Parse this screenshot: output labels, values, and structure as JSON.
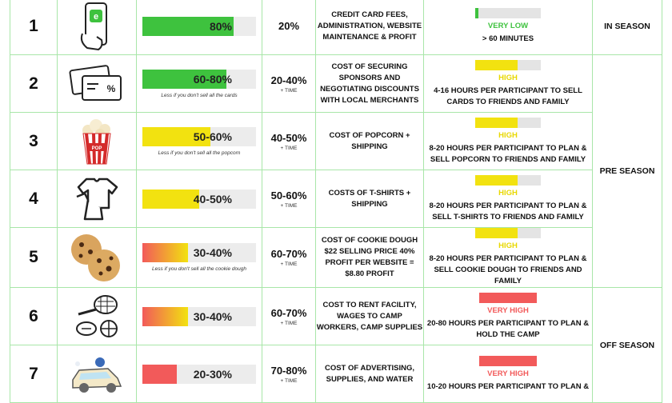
{
  "colors": {
    "border": "#a8e6a8",
    "green": "#3ec23e",
    "yellow": "#f2e210",
    "red": "#f25a5a",
    "very_low_text": "#3ec23e",
    "high_text": "#e8d800",
    "very_high_text": "#f25a5a"
  },
  "rows": [
    {
      "number": "1",
      "icon": "smartphone-icon",
      "percent_label": "80%",
      "bar_fraction": 0.8,
      "bar_color": "green",
      "note": "",
      "profit": "20%",
      "profit_sub": "",
      "cost": "CREDIT CARD FEES, ADMINISTRATION, WEBSITE MAINTENANCE & PROFIT",
      "effort_level": "VERY LOW",
      "effort_fraction": 0.04,
      "effort_color": "green",
      "effort_width": "short",
      "time_desc": "> 60 MINUTES",
      "season": "IN SEASON"
    },
    {
      "number": "2",
      "icon": "discount-cards-icon",
      "percent_label": "60-80%",
      "bar_fraction": 0.74,
      "bar_color": "green",
      "note": "Less if you don't sell all the cards",
      "profit": "20-40%",
      "profit_sub": "+ TIME",
      "cost": "COST OF SECURING SPONSORS AND NEGOTIATING DISCOUNTS WITH LOCAL MERCHANTS",
      "effort_level": "HIGH",
      "effort_fraction": 0.65,
      "effort_color": "yellow",
      "effort_width": "short",
      "time_desc": "4-16 HOURS PER PARTICIPANT TO SELL CARDS TO FRIENDS AND FAMILY",
      "season": ""
    },
    {
      "number": "3",
      "icon": "popcorn-icon",
      "percent_label": "50-60%",
      "bar_fraction": 0.6,
      "bar_color": "yellow",
      "note": "Less if you don't sell all the popcorn",
      "profit": "40-50%",
      "profit_sub": "+ TIME",
      "cost": "COST OF POPCORN + SHIPPING",
      "effort_level": "HIGH",
      "effort_fraction": 0.65,
      "effort_color": "yellow",
      "effort_width": "short",
      "time_desc": "8-20 HOURS PER PARTICIPANT TO PLAN & SELL POPCORN TO FRIENDS AND FAMILY",
      "season": "PRE SEASON"
    },
    {
      "number": "4",
      "icon": "t-shirts-icon",
      "percent_label": "40-50%",
      "bar_fraction": 0.5,
      "bar_color": "yellow",
      "note": "",
      "profit": "50-60%",
      "profit_sub": "+ TIME",
      "cost": "COSTS OF T-SHIRTS + SHIPPING",
      "effort_level": "HIGH",
      "effort_fraction": 0.65,
      "effort_color": "yellow",
      "effort_width": "short",
      "time_desc": "8-20 HOURS PER PARTICIPANT TO PLAN & SELL T-SHIRTS TO FRIENDS AND FAMILY",
      "season": ""
    },
    {
      "number": "5",
      "icon": "cookies-icon",
      "percent_label": "30-40%",
      "bar_fraction": 0.4,
      "bar_color": "red-yellow",
      "note": "Less if you don't sell all the  cookie dough",
      "profit": "60-70%",
      "profit_sub": "+ TIME",
      "cost": "COST OF COOKIE DOUGH $22 SELLING PRICE 40% PROFIT PER WEBSITE = $8.80 PROFIT",
      "effort_level": "HIGH",
      "effort_fraction": 0.65,
      "effort_color": "yellow",
      "effort_width": "short",
      "time_desc": "8-20 HOURS PER PARTICIPANT TO PLAN & SELL COOKIE DOUGH TO FRIENDS AND FAMILY",
      "season": ""
    },
    {
      "number": "6",
      "icon": "sports-balls-icon",
      "percent_label": "30-40%",
      "bar_fraction": 0.4,
      "bar_color": "red-yellow",
      "note": "",
      "profit": "60-70%",
      "profit_sub": "+ TIME",
      "cost": "COST TO RENT FACILITY, WAGES TO CAMP WORKERS, CAMP SUPPLIES",
      "effort_level": "VERY HIGH",
      "effort_fraction": 1.0,
      "effort_color": "red",
      "effort_width": "long",
      "time_desc": "20-80 HOURS PER PARTICIPANT TO PLAN & HOLD THE CAMP",
      "season": "OFF SEASON"
    },
    {
      "number": "7",
      "icon": "car-wash-icon",
      "percent_label": "20-30%",
      "bar_fraction": 0.3,
      "bar_color": "red",
      "note": "",
      "profit": "70-80%",
      "profit_sub": "+ TIME",
      "cost": "COST OF ADVERTISING, SUPPLIES, AND WATER",
      "effort_level": "VERY HIGH",
      "effort_fraction": 1.0,
      "effort_color": "red",
      "effort_width": "long",
      "time_desc": "10-20 HOURS PER PARTICIPANT TO PLAN &",
      "season": ""
    }
  ]
}
